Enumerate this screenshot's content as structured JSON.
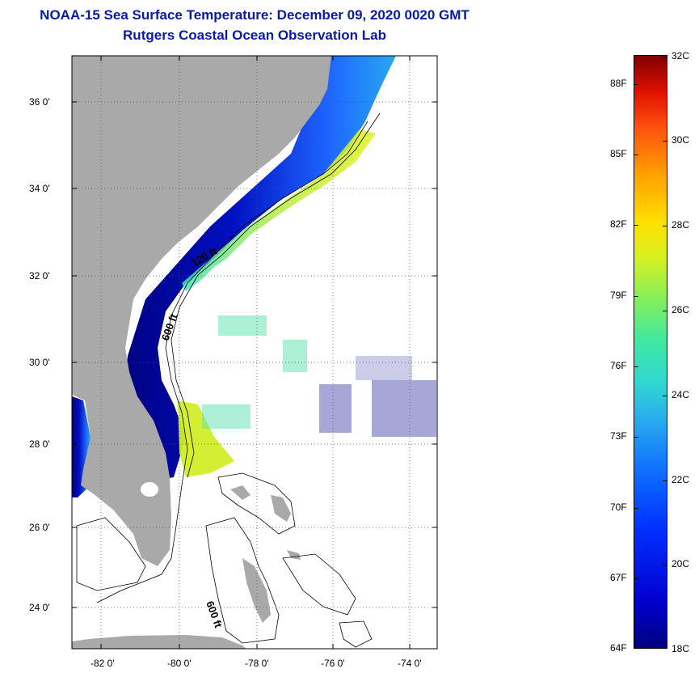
{
  "header": {
    "title": "NOAA-15 Sea Surface Temperature:  December 09, 2020 0020 GMT",
    "subtitle": "Rutgers Coastal Ocean Observation Lab"
  },
  "map": {
    "lat_labels": [
      "36 0'",
      "34 0'",
      "32 0'",
      "30 0'",
      "28 0'",
      "26 0'",
      "24 0'"
    ],
    "lon_labels": [
      "-82 0'",
      "-80 0'",
      "-78 0'",
      "-76 0'",
      "-74 0'"
    ],
    "contour_labels": [
      "120 ft",
      "600 ft",
      "600 ft"
    ],
    "colors": {
      "land": "#a9a9a9",
      "no_data": "#ffffff",
      "cold_coastal": "#00008b",
      "gulf_stream": "#c8ec30"
    }
  },
  "colorbar": {
    "fahrenheit": [
      "88F",
      "85F",
      "82F",
      "79F",
      "76F",
      "73F",
      "70F",
      "67F",
      "64F"
    ],
    "celsius": [
      "32C",
      "30C",
      "28C",
      "26C",
      "24C",
      "22C",
      "20C",
      "18C"
    ],
    "range_f": [
      64,
      90
    ],
    "range_c": [
      18,
      32
    ]
  }
}
